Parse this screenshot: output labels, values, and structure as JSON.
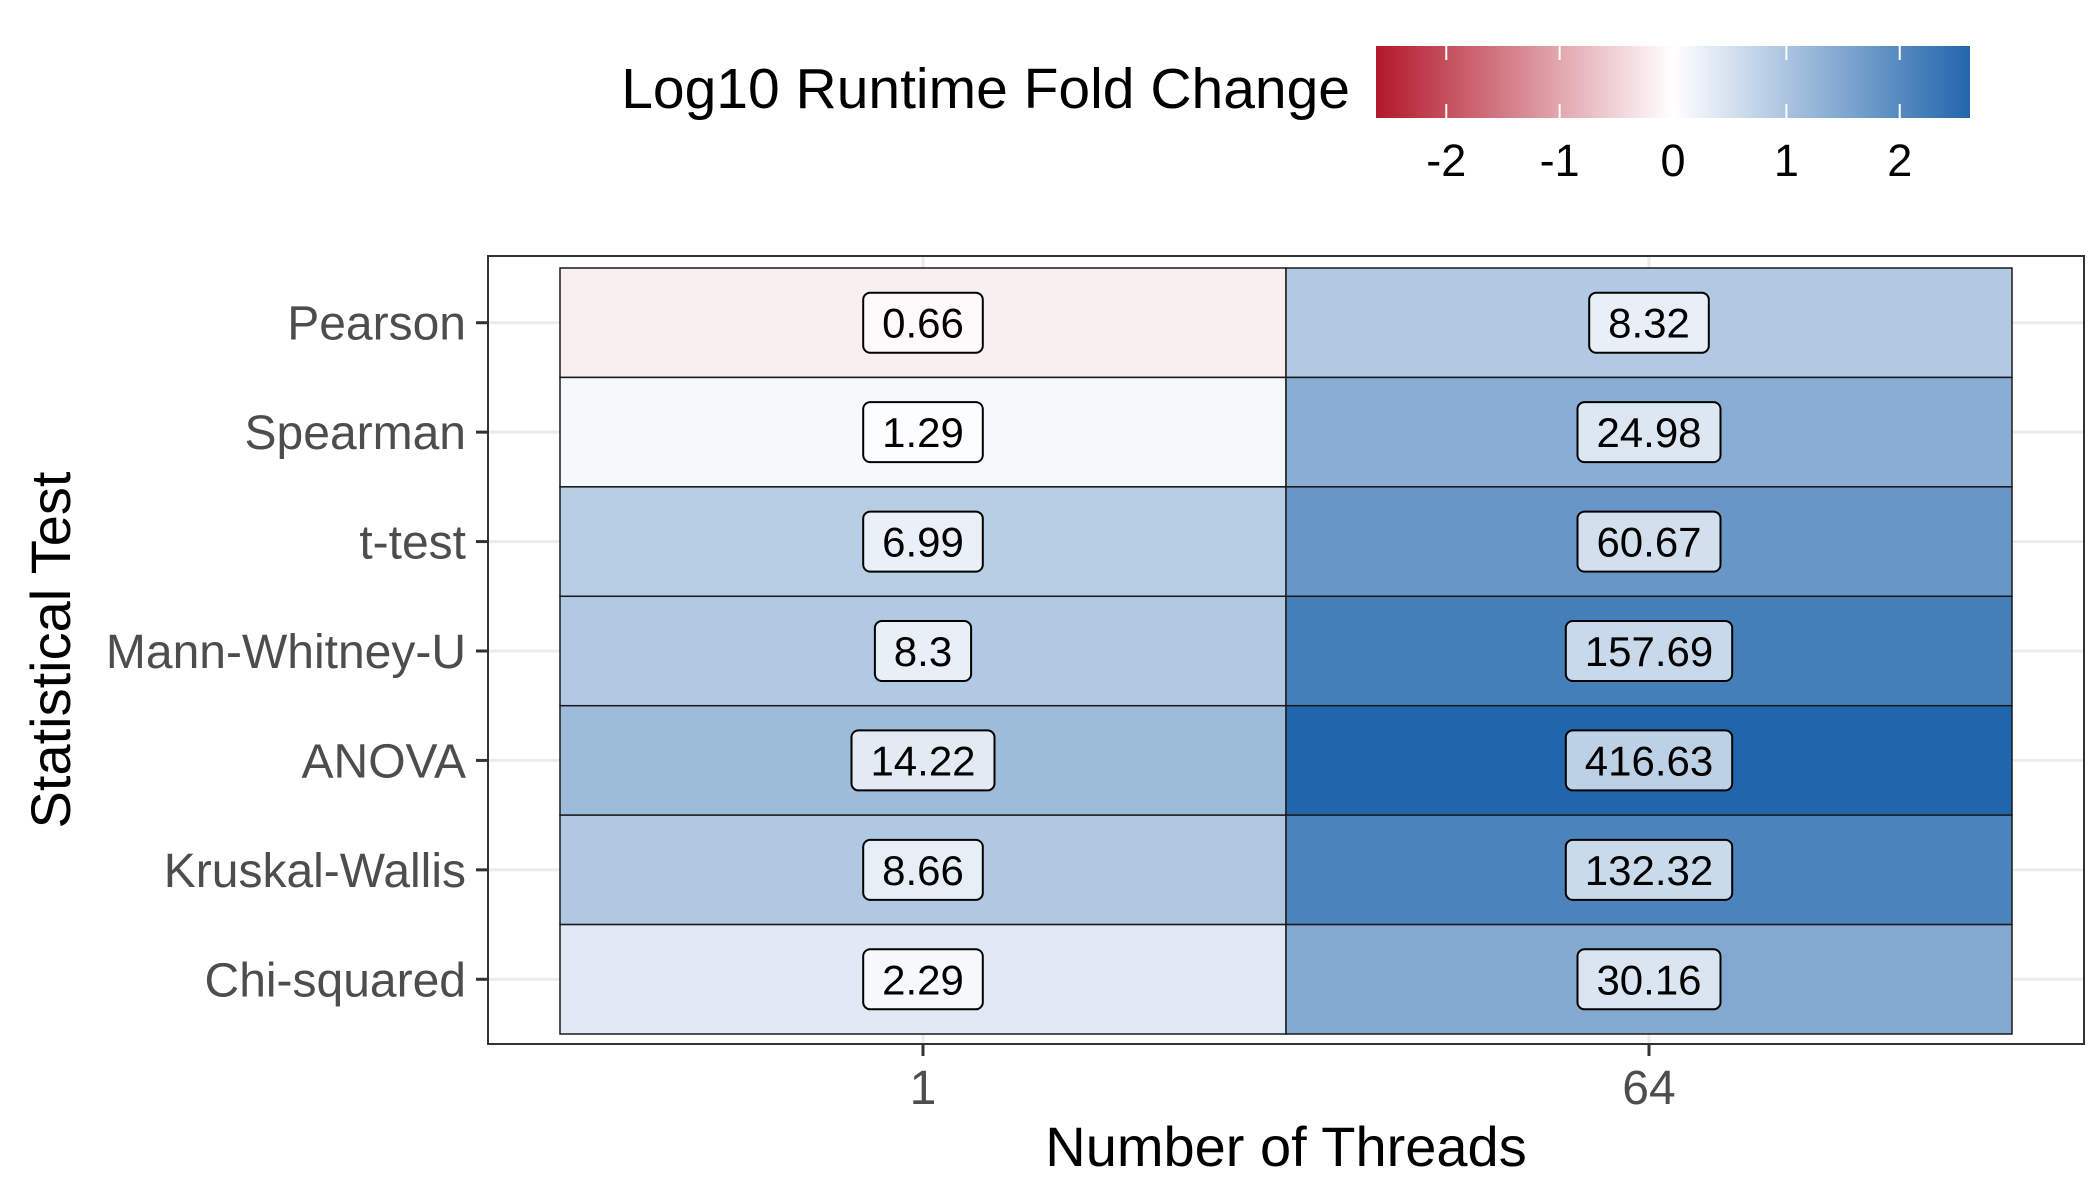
{
  "chart_data": {
    "type": "heatmap",
    "xlabel": "Number of Threads",
    "ylabel": "Statistical Test",
    "x_categories": [
      "1",
      "64"
    ],
    "y_categories": [
      "Pearson",
      "Spearman",
      "t-test",
      "Mann-Whitney-U",
      "ANOVA",
      "Kruskal-Wallis",
      "Chi-squared"
    ],
    "values": [
      [
        0.66,
        8.32
      ],
      [
        1.29,
        24.98
      ],
      [
        6.99,
        60.67
      ],
      [
        8.3,
        157.69
      ],
      [
        14.22,
        416.63
      ],
      [
        8.66,
        132.32
      ],
      [
        2.29,
        30.16
      ]
    ],
    "value_labels": [
      [
        "0.66",
        "8.32"
      ],
      [
        "1.29",
        "24.98"
      ],
      [
        "6.99",
        "60.67"
      ],
      [
        "8.3",
        "157.69"
      ],
      [
        "14.22",
        "416.63"
      ],
      [
        "8.66",
        "132.32"
      ],
      [
        "2.29",
        "30.16"
      ]
    ],
    "color_encoding": "log10",
    "legend": {
      "title": "Log10 Runtime Fold Change",
      "position": "top",
      "range": [
        -2.62,
        2.62
      ],
      "ticks": [
        -2,
        -1,
        0,
        1,
        2
      ],
      "tick_labels": [
        "-2",
        "-1",
        "0",
        "1",
        "2"
      ],
      "low_color": "#b2182b",
      "mid_color": "#ffffff",
      "high_color": "#2166ac"
    },
    "grid": true
  }
}
